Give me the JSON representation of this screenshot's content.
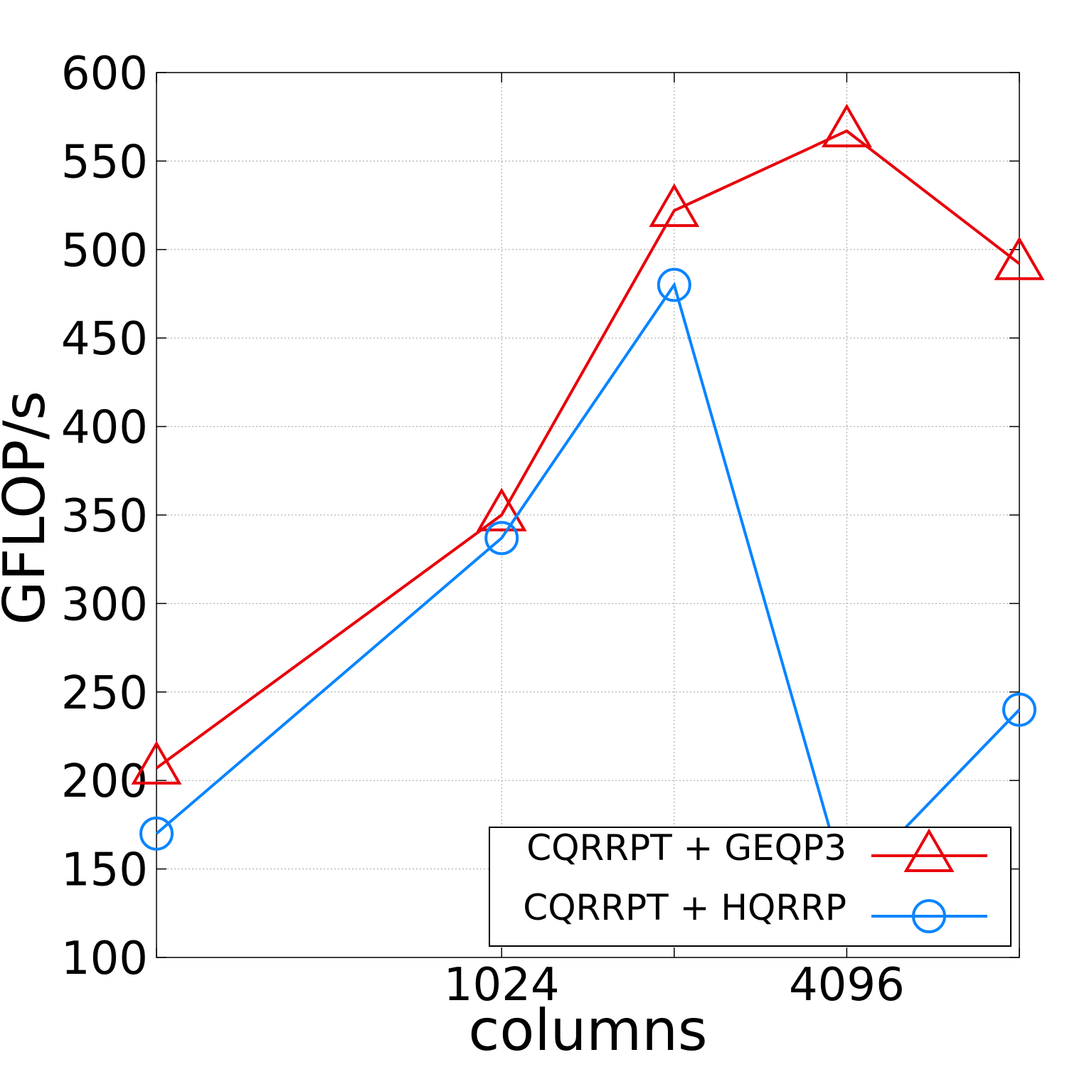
{
  "chart_data": {
    "type": "line",
    "title": "",
    "xlabel": "columns",
    "ylabel": "GFLOP/s",
    "x": [
      256,
      1024,
      2048,
      4096,
      8192
    ],
    "x_scale": "log2",
    "xlim": [
      256,
      8192
    ],
    "ylim": [
      100,
      600
    ],
    "x_tick_values": [
      1024,
      4096
    ],
    "x_tick_labels": [
      "1024",
      "4096"
    ],
    "x_minor_ticks": [
      256,
      1024,
      2048,
      4096,
      8192
    ],
    "y_ticks": [
      100,
      150,
      200,
      250,
      300,
      350,
      400,
      450,
      500,
      550,
      600
    ],
    "y_tick_labels": [
      "100",
      "150",
      "200",
      "250",
      "300",
      "350",
      "400",
      "450",
      "500",
      "550",
      "600"
    ],
    "grid": true,
    "legend_position": "bottom-right",
    "series": [
      {
        "name": "CQRRPT + GEQP3",
        "values": [
          207,
          350,
          522,
          567,
          492
        ],
        "color": "#e8000b",
        "marker": "triangle-icon"
      },
      {
        "name": "CQRRPT + HQRRP",
        "values": [
          170,
          337,
          480,
          139,
          240
        ],
        "color": "#0a84ff",
        "marker": "circle-icon"
      }
    ]
  }
}
